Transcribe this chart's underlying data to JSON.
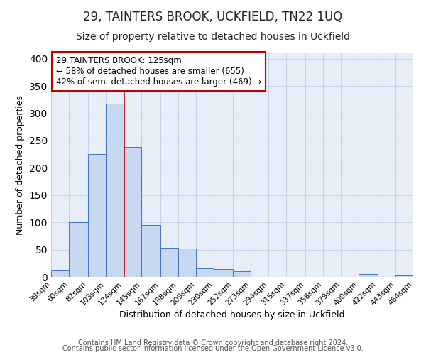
{
  "title": "29, TAINTERS BROOK, UCKFIELD, TN22 1UQ",
  "subtitle": "Size of property relative to detached houses in Uckfield",
  "xlabel": "Distribution of detached houses by size in Uckfield",
  "ylabel": "Number of detached properties",
  "footer_lines": [
    "Contains HM Land Registry data © Crown copyright and database right 2024.",
    "Contains public sector information licensed under the Open Government Licence v3.0."
  ],
  "bins": [
    "39sqm",
    "60sqm",
    "82sqm",
    "103sqm",
    "124sqm",
    "145sqm",
    "167sqm",
    "188sqm",
    "209sqm",
    "230sqm",
    "252sqm",
    "273sqm",
    "294sqm",
    "315sqm",
    "337sqm",
    "358sqm",
    "379sqm",
    "400sqm",
    "422sqm",
    "443sqm",
    "464sqm"
  ],
  "bin_edges": [
    39,
    60,
    82,
    103,
    124,
    145,
    167,
    188,
    209,
    230,
    252,
    273,
    294,
    315,
    337,
    358,
    379,
    400,
    422,
    443,
    464
  ],
  "values": [
    13,
    100,
    225,
    318,
    238,
    95,
    54,
    52,
    16,
    14,
    10,
    0,
    0,
    0,
    0,
    0,
    0,
    5,
    0,
    3
  ],
  "bar_color": "#c6d9f0",
  "bar_edge_color": "#4472c4",
  "property_value": 125,
  "vline_color": "#c00000",
  "annotation_text": "29 TAINTERS BROOK: 125sqm\n← 58% of detached houses are smaller (655)\n42% of semi-detached houses are larger (469) →",
  "annotation_box_color": "#ffffff",
  "annotation_box_edgecolor": "#c00000",
  "ylim": [
    0,
    410
  ],
  "plot_bg_color": "#e8eef8",
  "background_color": "#ffffff",
  "grid_color": "#c8d4e8",
  "title_fontsize": 12,
  "subtitle_fontsize": 10,
  "axis_label_fontsize": 9,
  "tick_fontsize": 7.5,
  "annotation_fontsize": 8.5,
  "footer_fontsize": 7
}
